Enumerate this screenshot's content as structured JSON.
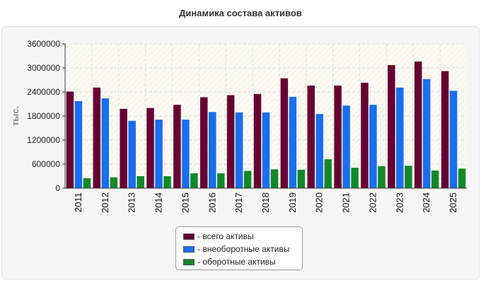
{
  "chart_data": {
    "type": "bar",
    "title": "Динамика состава активов",
    "ylabel": "тыс.",
    "xlabel": "",
    "categories": [
      "2011",
      "2012",
      "2013",
      "2014",
      "2015",
      "2016",
      "2017",
      "2018",
      "2019",
      "2020",
      "2021",
      "2022",
      "2023",
      "2024",
      "2025"
    ],
    "series": [
      {
        "name": "- всего активы",
        "color": "#660033",
        "values": [
          2410000,
          2510000,
          1980000,
          2000000,
          2080000,
          2270000,
          2320000,
          2350000,
          2740000,
          2560000,
          2560000,
          2630000,
          3070000,
          3160000,
          2920000
        ]
      },
      {
        "name": "- внеоборотные активы",
        "color": "#1a6ef0",
        "values": [
          2170000,
          2240000,
          1680000,
          1710000,
          1710000,
          1900000,
          1890000,
          1890000,
          2280000,
          1850000,
          2060000,
          2080000,
          2510000,
          2720000,
          2430000
        ]
      },
      {
        "name": "- оборотные активы",
        "color": "#11892b",
        "values": [
          250000,
          270000,
          300000,
          300000,
          370000,
          370000,
          430000,
          470000,
          460000,
          720000,
          510000,
          550000,
          560000,
          440000,
          490000
        ]
      }
    ],
    "ylim": [
      0,
      3600000
    ],
    "yticks": [
      "0",
      "600000",
      "1200000",
      "1800000",
      "2400000",
      "3000000",
      "3600000"
    ],
    "grid": true,
    "legend": "bottom"
  }
}
